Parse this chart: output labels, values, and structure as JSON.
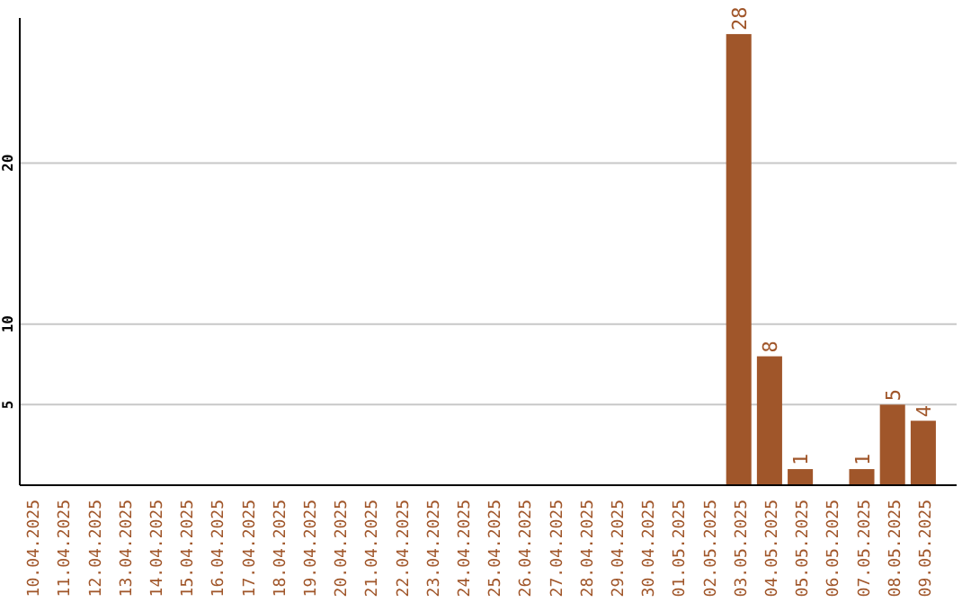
{
  "chart_data": {
    "type": "bar",
    "categories": [
      "10.04.2025",
      "11.04.2025",
      "12.04.2025",
      "13.04.2025",
      "14.04.2025",
      "15.04.2025",
      "16.04.2025",
      "17.04.2025",
      "18.04.2025",
      "19.04.2025",
      "20.04.2025",
      "21.04.2025",
      "22.04.2025",
      "23.04.2025",
      "24.04.2025",
      "25.04.2025",
      "26.04.2025",
      "27.04.2025",
      "28.04.2025",
      "29.04.2025",
      "30.04.2025",
      "01.05.2025",
      "02.05.2025",
      "03.05.2025",
      "04.05.2025",
      "05.05.2025",
      "06.05.2025",
      "07.05.2025",
      "08.05.2025",
      "09.05.2025"
    ],
    "values": [
      0,
      0,
      0,
      0,
      0,
      0,
      0,
      0,
      0,
      0,
      0,
      0,
      0,
      0,
      0,
      0,
      0,
      0,
      0,
      0,
      0,
      0,
      0,
      28,
      8,
      1,
      0,
      1,
      5,
      4
    ],
    "value_labels": [
      null,
      null,
      null,
      null,
      null,
      null,
      null,
      null,
      null,
      null,
      null,
      null,
      null,
      null,
      null,
      null,
      null,
      null,
      null,
      null,
      null,
      null,
      null,
      "28",
      "8",
      "1",
      null,
      "1",
      "5",
      "4"
    ],
    "color": "#a0562a",
    "ylim": [
      0,
      29
    ],
    "yticks": [
      5,
      10,
      20
    ],
    "grid": "y"
  }
}
